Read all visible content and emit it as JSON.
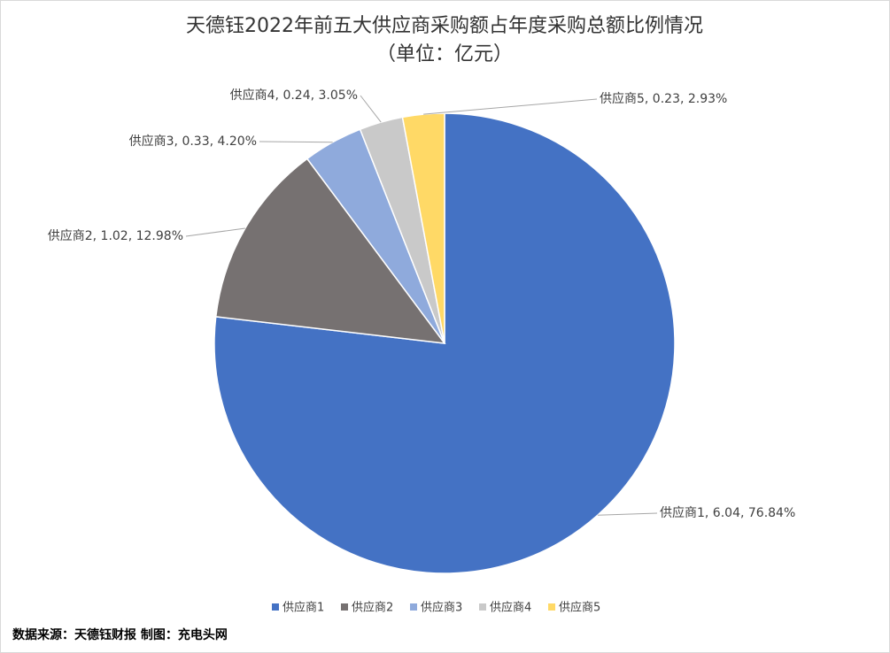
{
  "chart_data": {
    "type": "pie",
    "title": "天德钰2022年前五大供应商采购额占年度采购总额比例情况",
    "subtitle": "（单位：亿元）",
    "categories": [
      "供应商1",
      "供应商2",
      "供应商3",
      "供应商4",
      "供应商5"
    ],
    "values": [
      6.04,
      1.02,
      0.33,
      0.24,
      0.23
    ],
    "value_labels": [
      "供应商1, 6.04, 76.84%",
      "供应商2, 1.02, 12.98%",
      "供应商3, 0.33, 4.20%",
      "供应商4, 0.24, 3.05%",
      "供应商5, 0.23, 2.93%"
    ],
    "colors": [
      "#4472c4",
      "#767171",
      "#8faadc",
      "#c9c9c9",
      "#ffd966"
    ],
    "legend": "bottom",
    "source": "数据来源：天德钰财报  制图：充电头网"
  }
}
